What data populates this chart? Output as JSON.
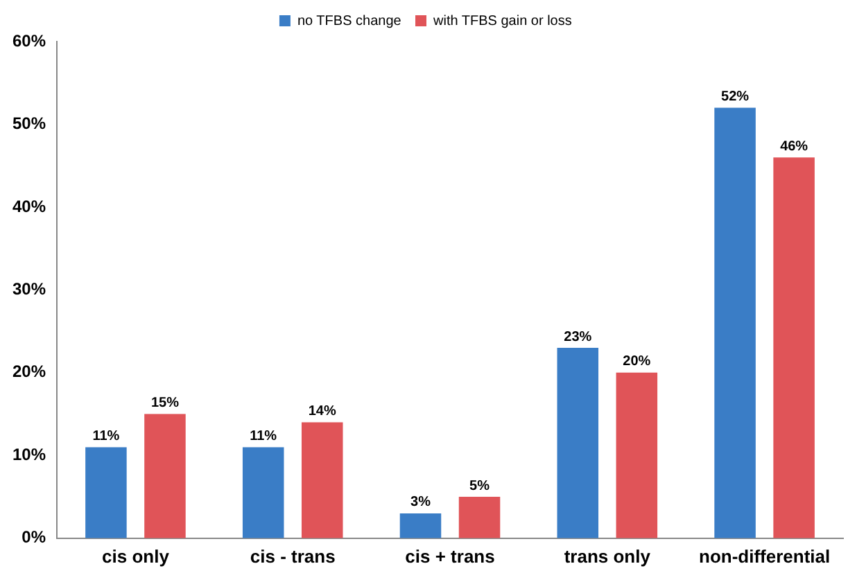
{
  "chart_data": {
    "type": "bar",
    "categories": [
      "cis only",
      "cis - trans",
      "cis + trans",
      "trans only",
      "non-differential"
    ],
    "series": [
      {
        "name": "no TFBS change",
        "color": "#3a7dc6",
        "values": [
          11,
          11,
          3,
          23,
          52
        ],
        "value_labels": [
          "11%",
          "11%",
          "3%",
          "23%",
          "52%"
        ]
      },
      {
        "name": "with TFBS gain or loss",
        "color": "#e05458",
        "values": [
          15,
          14,
          5,
          20,
          46
        ],
        "value_labels": [
          "15%",
          "14%",
          "5%",
          "20%",
          "46%"
        ]
      }
    ],
    "ylim": [
      0,
      60
    ],
    "yticks": [
      {
        "value": 0,
        "label": "0%"
      },
      {
        "value": 10,
        "label": "10%"
      },
      {
        "value": 20,
        "label": "20%"
      },
      {
        "value": 30,
        "label": "30%"
      },
      {
        "value": 40,
        "label": "40%"
      },
      {
        "value": 50,
        "label": "50%"
      },
      {
        "value": 60,
        "label": "60%"
      }
    ],
    "grid": false,
    "legend": "top"
  }
}
